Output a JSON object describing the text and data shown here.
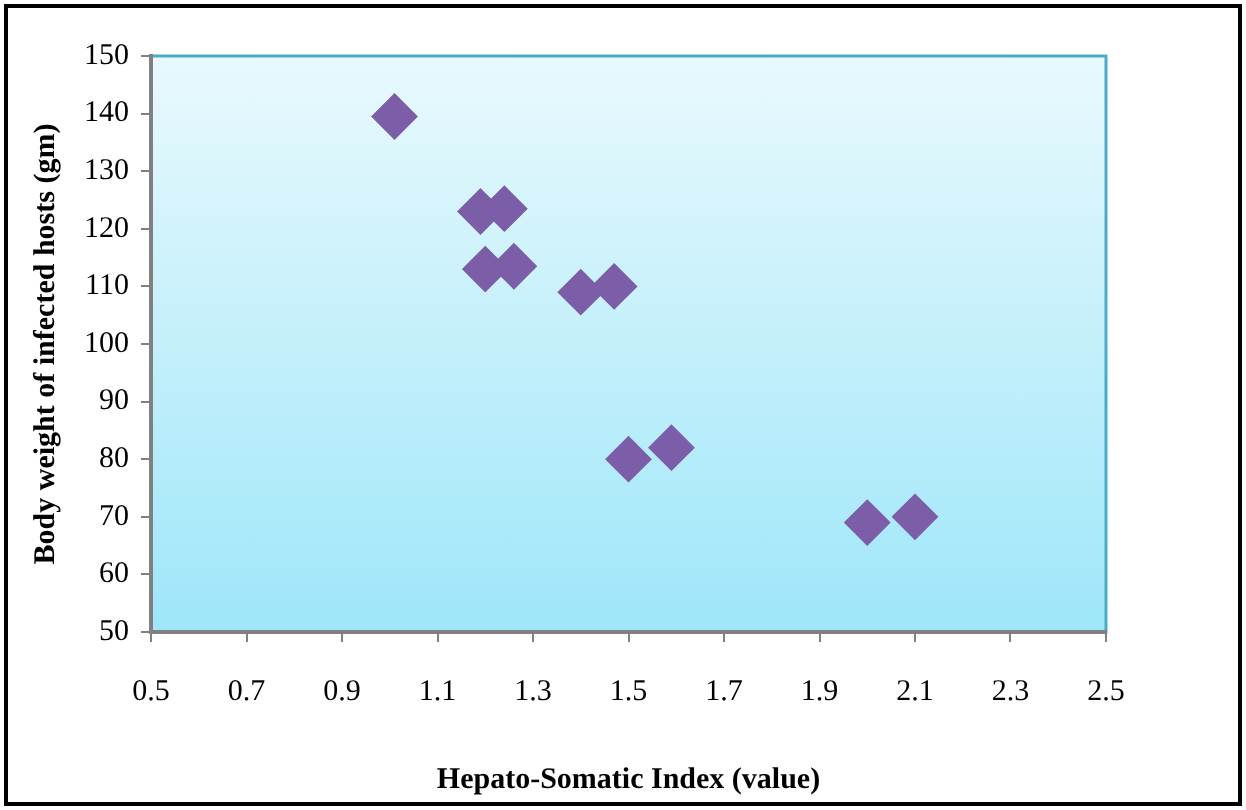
{
  "chart_data": {
    "type": "scatter",
    "xlabel": "Hepato-Somatic Index (value)",
    "ylabel": "Body weight of infected hosts (gm)",
    "x": [
      1.01,
      1.19,
      1.24,
      1.2,
      1.26,
      1.4,
      1.47,
      1.5,
      1.59,
      2.0,
      2.1
    ],
    "series": [
      {
        "color": "#7b5ea7",
        "values": [
          139.5,
          123,
          123.5,
          113,
          113.5,
          109,
          110,
          80,
          82,
          69,
          70
        ]
      }
    ],
    "xlim": [
      0.5,
      2.5
    ],
    "xticks": [
      0.5,
      0.7,
      0.9,
      1.1,
      1.3,
      1.5,
      1.7,
      1.9,
      2.1,
      2.3,
      2.5
    ],
    "ylim": [
      50,
      150
    ],
    "yticks": [
      50,
      60,
      70,
      80,
      90,
      100,
      110,
      120,
      130,
      140,
      150
    ],
    "grid": false,
    "legend": false,
    "marker": "diamond"
  }
}
